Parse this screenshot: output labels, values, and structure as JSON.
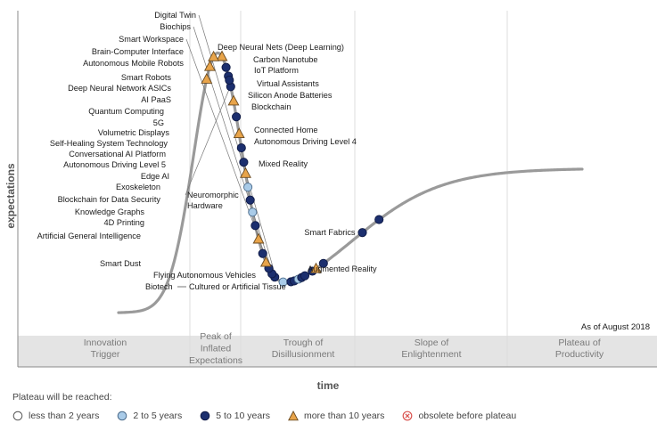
{
  "chart_data": {
    "type": "hype-cycle",
    "ylabel": "expectations",
    "xlabel": "time",
    "note": "As of August 2018",
    "phases": [
      {
        "label": [
          "Innovation",
          "Trigger"
        ]
      },
      {
        "label": [
          "Peak of",
          "Inflated",
          "Expectations"
        ]
      },
      {
        "label": [
          "Trough of",
          "Disillusionment"
        ]
      },
      {
        "label": [
          "Slope of",
          "Enlightenment"
        ]
      },
      {
        "label": [
          "Plateau of",
          "Productivity"
        ]
      }
    ],
    "legend": {
      "title": "Plateau will be reached:",
      "items": [
        {
          "key": "lt2",
          "label": "less than 2 years",
          "shape": "circle",
          "color": "#ffffff"
        },
        {
          "key": "2to5",
          "label": "2 to 5 years",
          "shape": "circle",
          "color": "#a9cbe8"
        },
        {
          "key": "5to10",
          "label": "5 to 10 years",
          "shape": "circle",
          "color": "#1c2f6e"
        },
        {
          "key": "gt10",
          "label": "more than 10 years",
          "shape": "triangle",
          "color": "#e8a44a"
        },
        {
          "key": "obsolete",
          "label": "obsolete before plateau",
          "shape": "xcircle",
          "color": "#d9534f"
        }
      ]
    },
    "technologies": [
      {
        "name": "Digital Twin",
        "t": 0.337,
        "category": "5to10"
      },
      {
        "name": "Biochips",
        "t": 0.331,
        "category": "5to10"
      },
      {
        "name": "Smart Workspace",
        "t": 0.324,
        "category": "5to10"
      },
      {
        "name": "Brain-Computer Interface",
        "t": 0.318,
        "category": "gt10"
      },
      {
        "name": "Autonomous Mobile Robots",
        "t": 0.311,
        "category": "5to10"
      },
      {
        "name": "Smart Robots",
        "t": 0.302,
        "category": "gt10"
      },
      {
        "name": "Deep Neural Network ASICs",
        "t": 0.295,
        "category": "5to10"
      },
      {
        "name": "AI PaaS",
        "t": 0.289,
        "category": "2to5"
      },
      {
        "name": "Quantum Computing",
        "t": 0.284,
        "category": "5to10"
      },
      {
        "name": "5G",
        "t": 0.279,
        "category": "2to5"
      },
      {
        "name": "Volumetric Displays",
        "t": 0.274,
        "category": "gt10"
      },
      {
        "name": "Self-Healing System Technology",
        "t": 0.27,
        "category": "5to10"
      },
      {
        "name": "Conversational AI Platform",
        "t": 0.265,
        "category": "5to10"
      },
      {
        "name": "Autonomous Driving Level 5",
        "t": 0.26,
        "category": "gt10"
      },
      {
        "name": "Edge AI",
        "t": 0.254,
        "category": "5to10"
      },
      {
        "name": "Exoskeleton",
        "t": 0.248,
        "category": "gt10"
      },
      {
        "name": "Blockchain for Data Security",
        "t": 0.242,
        "category": "5to10"
      },
      {
        "name": "Knowledge Graphs",
        "t": 0.237,
        "category": "5to10"
      },
      {
        "name": "4D Printing",
        "t": 0.232,
        "category": "5to10"
      },
      {
        "name": "Neuromorphic Hardware",
        "t": 0.239,
        "category": "5to10"
      },
      {
        "name": "Artificial General Intelligence",
        "t": 0.223,
        "category": "gt10"
      },
      {
        "name": "Smart Dust",
        "t": 0.205,
        "category": "gt10"
      },
      {
        "name": "Flying Autonomous Vehicles",
        "t": 0.197,
        "category": "gt10"
      },
      {
        "name": "Biotech — Cultured or Artificial Tissue",
        "t": 0.19,
        "category": "gt10"
      },
      {
        "name": "Deep Neural Nets (Deep Learning)",
        "t": 0.355,
        "category": "2to5"
      },
      {
        "name": "Carbon Nanotube",
        "t": 0.372,
        "category": "5to10"
      },
      {
        "name": "IoT Platform",
        "t": 0.379,
        "category": "5to10"
      },
      {
        "name": "Virtual Assistants",
        "t": 0.388,
        "category": "2to5"
      },
      {
        "name": "Silicon Anode Batteries",
        "t": 0.395,
        "category": "5to10"
      },
      {
        "name": "Blockchain",
        "t": 0.402,
        "category": "5to10"
      },
      {
        "name": "Connected Home",
        "t": 0.418,
        "category": "5to10"
      },
      {
        "name": "Autonomous Driving Level 4",
        "t": 0.426,
        "category": "gt10"
      },
      {
        "name": "Mixed Reality",
        "t": 0.442,
        "category": "5to10"
      },
      {
        "name": "Smart Fabrics",
        "t": 0.526,
        "category": "5to10"
      },
      {
        "name": "Augmented Reality",
        "t": 0.562,
        "category": "5to10"
      }
    ]
  }
}
